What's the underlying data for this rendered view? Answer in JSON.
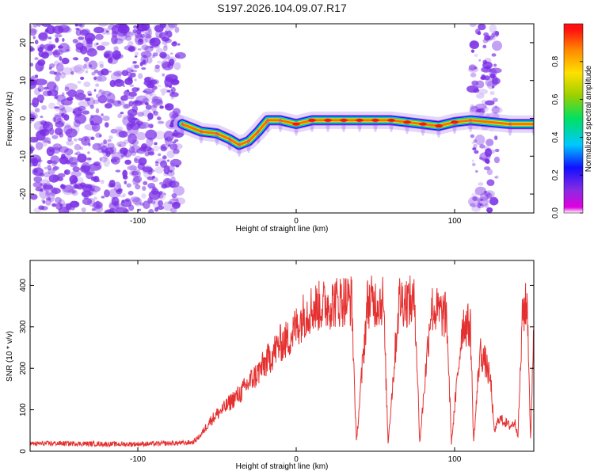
{
  "title": "S197.2026.104.09.07.R17",
  "colors": {
    "snr_line": "#e53030",
    "purple": "#7a2ee6",
    "cmap": [
      "#e000e0",
      "#8a2be2",
      "#1010ff",
      "#00c8ff",
      "#00e060",
      "#9ad000",
      "#ffe000",
      "#ff8a00",
      "#ff1010"
    ]
  },
  "chart_data": [
    {
      "type": "heatmap",
      "title": "S197.2026.104.09.07.R17",
      "xlabel": "Height of straight line (km)",
      "ylabel": "Frequency (Hz)",
      "xlim": [
        -168,
        150
      ],
      "ylim": [
        -25,
        25
      ],
      "xticks": [
        -100,
        0,
        100
      ],
      "xtick_labels": [
        "-100",
        "0",
        "100"
      ],
      "yticks": [
        -20,
        -10,
        0,
        10,
        20
      ],
      "ytick_labels": [
        "-20",
        "-10",
        "0",
        "10",
        "20"
      ],
      "colorbar": {
        "label": "Normalized spectral amplitude",
        "range": [
          0,
          1
        ],
        "ticks": [
          0.0,
          0.2,
          0.4,
          0.6,
          0.8
        ],
        "tick_labels": [
          "0.0",
          "0.2",
          "0.4",
          "0.6",
          "0.8"
        ]
      },
      "noise_regions_km": [
        [
          -168,
          -73
        ],
        [
          111,
          127
        ]
      ],
      "signal_track": {
        "x": [
          -72,
          -60,
          -50,
          -42,
          -36,
          -30,
          -24,
          -18,
          -10,
          0,
          10,
          20,
          30,
          40,
          50,
          60,
          70,
          80,
          90,
          100,
          110,
          135,
          150
        ],
        "y": [
          -1.5,
          -3.5,
          -4.0,
          -5.5,
          -7.0,
          -6.0,
          -3.5,
          -0.5,
          -0.5,
          -1.5,
          -0.5,
          -0.5,
          -0.5,
          -0.5,
          -0.5,
          -0.5,
          -1.0,
          -1.5,
          -2.0,
          -1.0,
          -0.5,
          -1.5,
          -1.5
        ]
      }
    },
    {
      "type": "line",
      "xlabel": "Height of straight line (km)",
      "ylabel": "SNR (10 * v/v)",
      "xlim": [
        -168,
        150
      ],
      "ylim": [
        0,
        460
      ],
      "xticks": [
        -100,
        0,
        100
      ],
      "xtick_labels": [
        "-100",
        "0",
        "100"
      ],
      "yticks": [
        0,
        100,
        200,
        300,
        400
      ],
      "ytick_labels": [
        "0",
        "100",
        "200",
        "300",
        "400"
      ],
      "series": [
        {
          "name": "SNR",
          "x": [
            -168,
            -150,
            -130,
            -110,
            -90,
            -70,
            -65,
            -60,
            -55,
            -50,
            -45,
            -40,
            -35,
            -30,
            -25,
            -20,
            -15,
            -10,
            -5,
            0,
            5,
            10,
            15,
            20,
            25,
            30,
            35,
            38,
            45,
            50,
            55,
            58,
            65,
            70,
            75,
            78,
            85,
            90,
            95,
            98,
            105,
            110,
            112,
            116,
            120,
            123,
            125,
            128,
            132,
            135,
            138,
            140,
            143,
            146,
            148,
            150
          ],
          "values": [
            18,
            19,
            18,
            17,
            18,
            20,
            22,
            40,
            70,
            90,
            105,
            125,
            140,
            165,
            185,
            210,
            235,
            260,
            270,
            300,
            330,
            345,
            350,
            355,
            360,
            365,
            365,
            20,
            360,
            360,
            365,
            20,
            365,
            362,
            355,
            20,
            345,
            335,
            325,
            20,
            310,
            300,
            20,
            240,
            210,
            160,
            45,
            80,
            70,
            60,
            70,
            40,
            340,
            350,
            20,
            330
          ]
        }
      ]
    }
  ]
}
